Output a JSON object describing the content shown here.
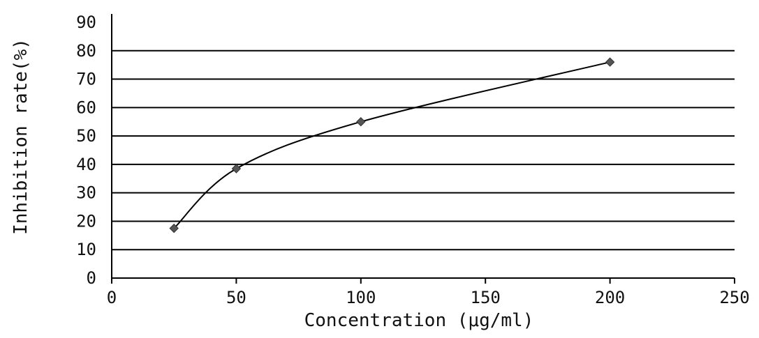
{
  "chart_data": {
    "type": "line",
    "title": "",
    "xlabel": "Concentration (μg/ml)",
    "ylabel": "Inhibition rate(%)",
    "xlim": [
      0,
      250
    ],
    "ylim": [
      0,
      90
    ],
    "x_ticks": [
      "0",
      "50",
      "100",
      "150",
      "200",
      "250"
    ],
    "y_ticks": [
      "0",
      "10",
      "20",
      "30",
      "40",
      "50",
      "60",
      "70",
      "80",
      "90"
    ],
    "grid": "horizontal",
    "legend": "none",
    "series": [
      {
        "x": [
          25,
          50,
          100,
          200
        ],
        "y": [
          17.5,
          38.5,
          55,
          76
        ]
      }
    ],
    "colors": {
      "line": "#000000",
      "marker": "#555555",
      "grid": "#000000"
    }
  }
}
